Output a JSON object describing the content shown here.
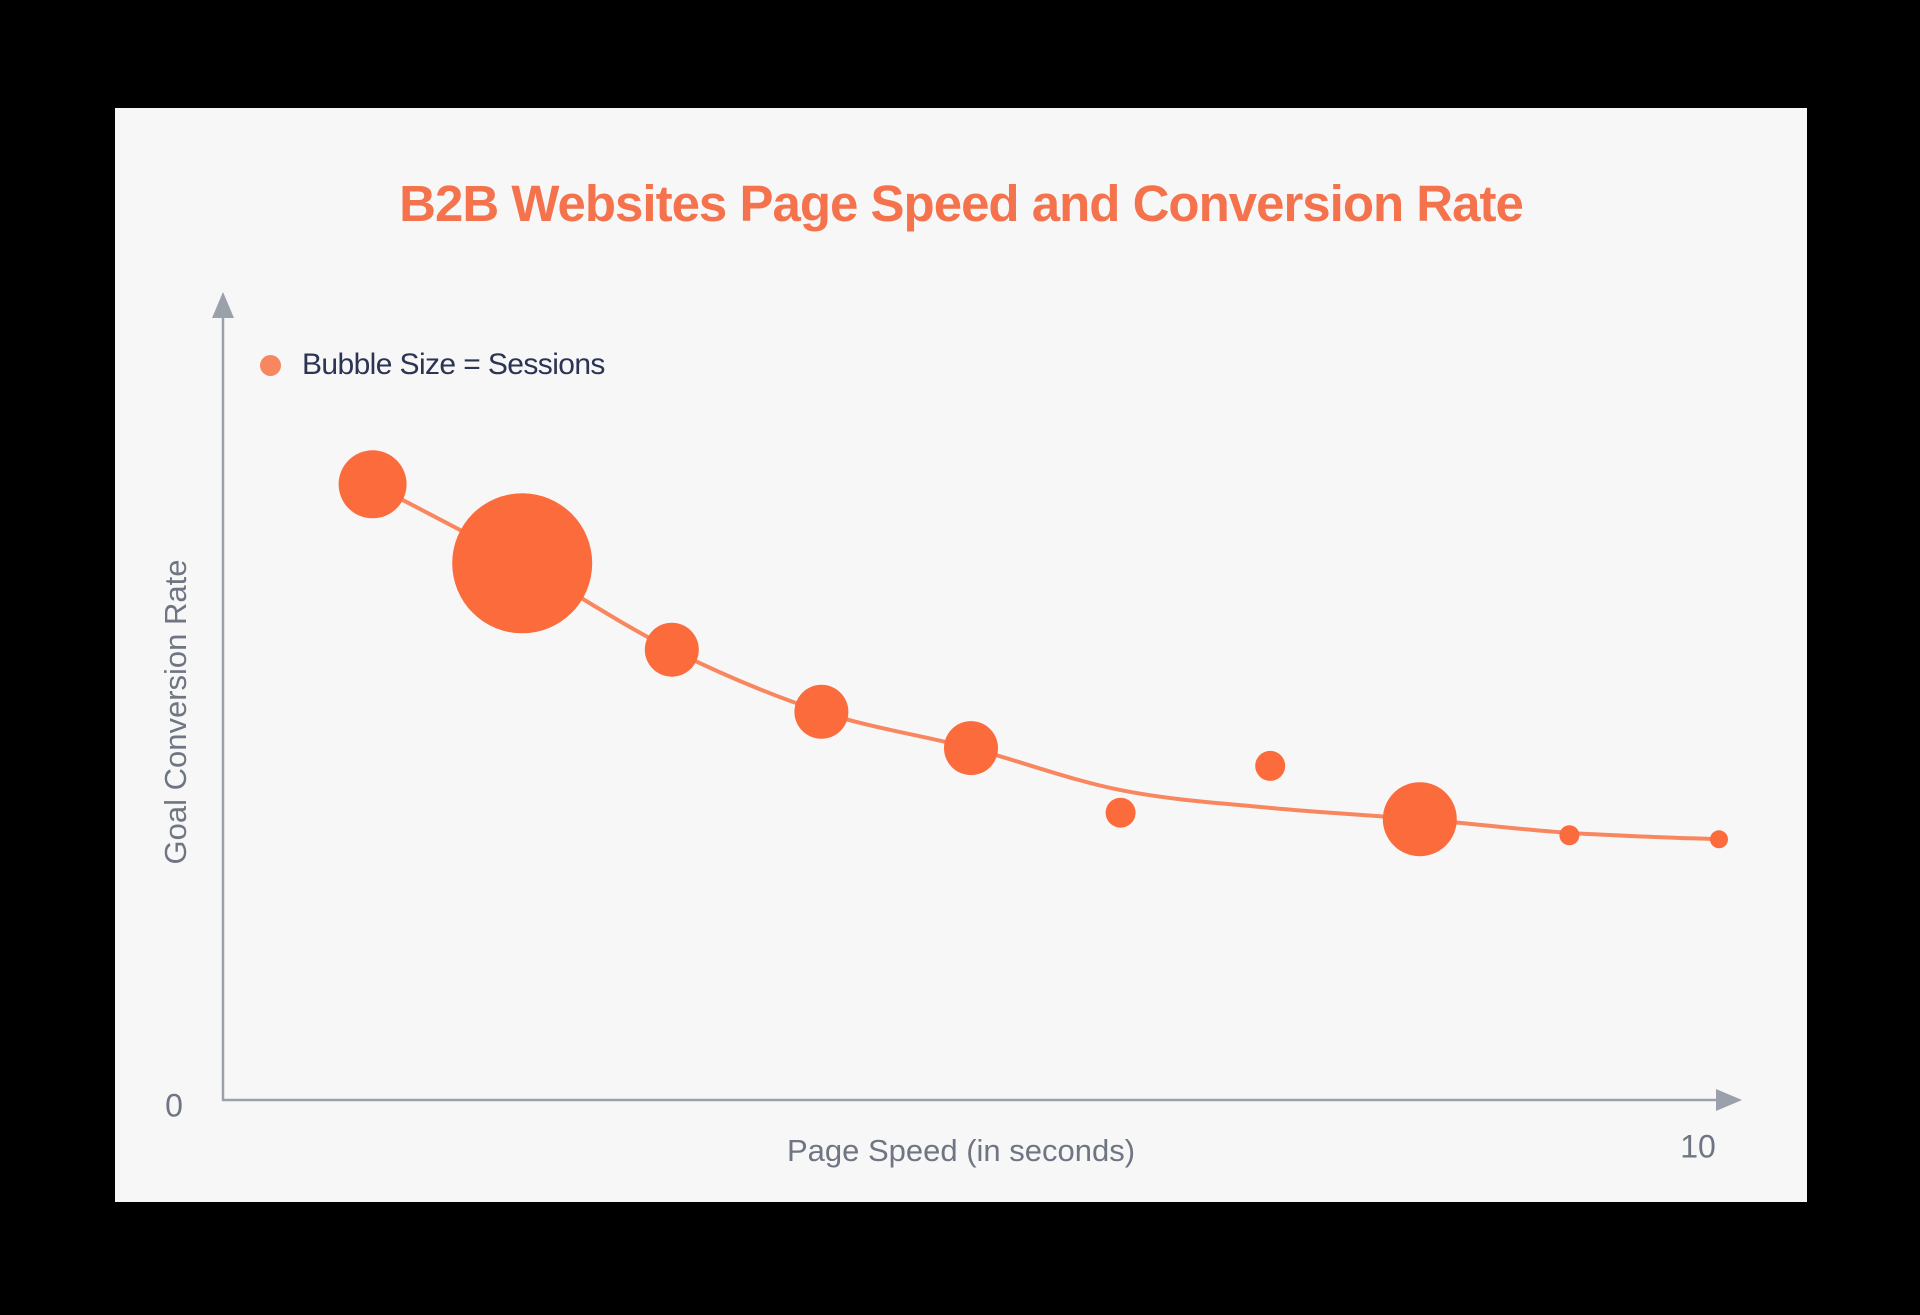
{
  "chart": {
    "title": "B2B Websites Page Speed and Conversion Rate",
    "legend": "Bubble Size = Sessions",
    "ylabel": "Goal Conversion Rate",
    "xlabel": "Page Speed (in seconds)",
    "origin_tick": "0",
    "x_max_tick": "10"
  },
  "colors": {
    "background": "#000000",
    "card": "#F7F7F8",
    "title": "#F4734D",
    "bubble": "#FB6B3C",
    "trend_line": "#F8875F",
    "legend_dot": "#F8875F",
    "axis": "#9BA1AB",
    "axis_text": "#6F7582",
    "legend_text": "#2B3453"
  },
  "chart_data": {
    "type": "scatter",
    "subtype": "bubble-with-trendline",
    "title": "B2B Websites Page Speed and Conversion Rate",
    "xlabel": "Page Speed (in seconds)",
    "ylabel": "Goal Conversion Rate",
    "legend": "Bubble Size = Sessions",
    "bubble_size_means": "Sessions",
    "x_range_seconds": [
      0,
      10
    ],
    "x_tick_labels_shown": [
      "0",
      "10"
    ],
    "y_tick_labels_shown": [],
    "grid": false,
    "y_units": "relative conversion rate, percent of plot height above x-axis (no numeric scale shown)",
    "points": [
      {
        "page_speed_s": 1,
        "conversion_rel_pct": 76.3,
        "bubble_radius_px": 34
      },
      {
        "page_speed_s": 2,
        "conversion_rel_pct": 66.5,
        "bubble_radius_px": 70
      },
      {
        "page_speed_s": 3,
        "conversion_rel_pct": 55.8,
        "bubble_radius_px": 27
      },
      {
        "page_speed_s": 4,
        "conversion_rel_pct": 48.1,
        "bubble_radius_px": 27
      },
      {
        "page_speed_s": 5,
        "conversion_rel_pct": 43.6,
        "bubble_radius_px": 27
      },
      {
        "page_speed_s": 6,
        "conversion_rel_pct": 35.6,
        "bubble_radius_px": 15
      },
      {
        "page_speed_s": 7,
        "conversion_rel_pct": 41.4,
        "bubble_radius_px": 15
      },
      {
        "page_speed_s": 8,
        "conversion_rel_pct": 34.8,
        "bubble_radius_px": 37
      },
      {
        "page_speed_s": 9,
        "conversion_rel_pct": 32.8,
        "bubble_radius_px": 10
      },
      {
        "page_speed_s": 10,
        "conversion_rel_pct": 32.3,
        "bubble_radius_px": 9
      }
    ],
    "trendline": [
      {
        "x": 1,
        "y": 76.3
      },
      {
        "x": 2,
        "y": 66.5
      },
      {
        "x": 3,
        "y": 55.8
      },
      {
        "x": 4,
        "y": 48.1
      },
      {
        "x": 5,
        "y": 43.6
      },
      {
        "x": 6,
        "y": 38.4
      },
      {
        "x": 7,
        "y": 36.2
      },
      {
        "x": 8,
        "y": 34.8
      },
      {
        "x": 9,
        "y": 33.1
      },
      {
        "x": 10,
        "y": 32.3
      }
    ]
  }
}
